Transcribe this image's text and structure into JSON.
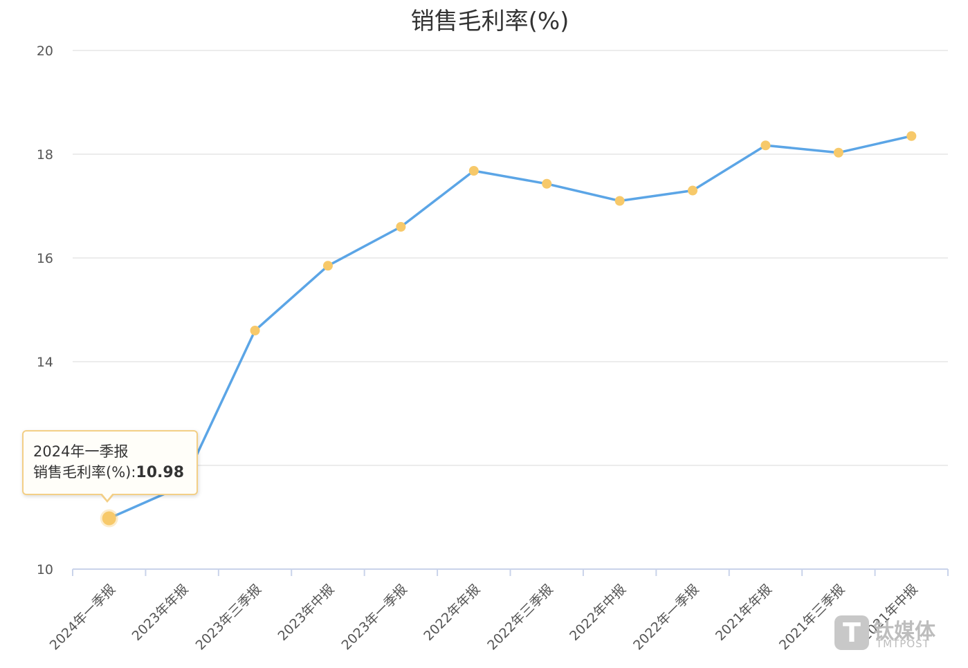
{
  "chart_data": {
    "type": "line",
    "title": "销售毛利率(%)",
    "categories": [
      "2024年一季报",
      "2023年年报",
      "2023年三季报",
      "2023年中报",
      "2023年一季报",
      "2022年年报",
      "2022年三季报",
      "2022年中报",
      "2022年一季报",
      "2021年年报",
      "2021年三季报",
      "2021年中报"
    ],
    "series": [
      {
        "name": "销售毛利率(%)",
        "values": [
          10.98,
          11.6,
          14.6,
          15.85,
          16.6,
          17.68,
          17.43,
          17.1,
          17.3,
          18.17,
          18.03,
          18.35
        ]
      }
    ],
    "ylim": [
      10,
      20
    ],
    "yticks": [
      10,
      14,
      16,
      18,
      20
    ],
    "grid": true,
    "colors": {
      "line": "#5ba5e6",
      "marker": "#f7c96a"
    }
  },
  "tooltip": {
    "category": "2024年一季报",
    "label": "销售毛利率(%):",
    "value": "10.98"
  },
  "watermark": {
    "logo_letter": "T",
    "name_cn": "钛媒体",
    "name_en": "TMTPOST"
  }
}
